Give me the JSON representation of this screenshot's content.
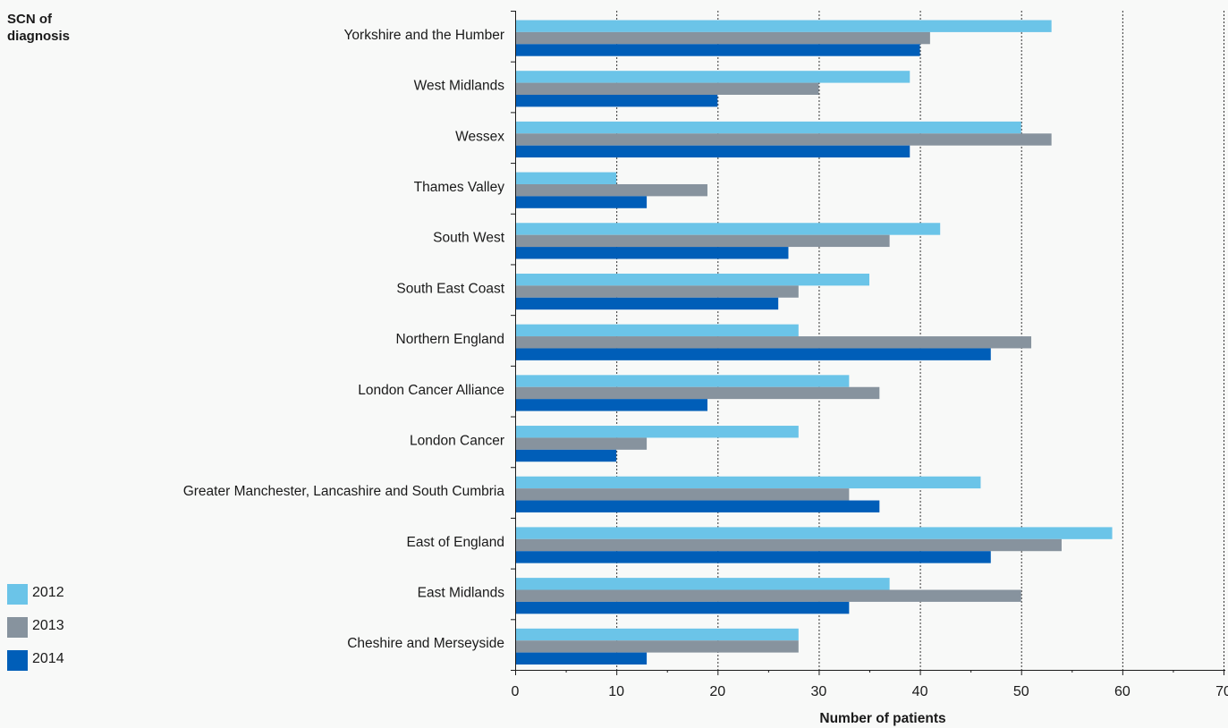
{
  "chart_data": {
    "type": "bar",
    "orientation": "horizontal",
    "ylabel": "SCN of diagnosis",
    "xlabel": "Number of patients",
    "xlim": [
      0,
      70
    ],
    "xticks": [
      "0",
      "10",
      "20",
      "30",
      "40",
      "50",
      "60",
      "70"
    ],
    "grid": "vertical dotted",
    "legend_position": "bottom-left",
    "categories": [
      "Yorkshire and the Humber",
      "West Midlands",
      "Wessex",
      "Thames Valley",
      "South West",
      "South East Coast",
      "Northern England",
      "London Cancer Alliance",
      "London Cancer",
      "Greater Manchester, Lancashire and South Cumbria",
      "East of England",
      "East Midlands",
      "Cheshire and Merseyside"
    ],
    "series": [
      {
        "name": "2012",
        "color": "#6bc4e8",
        "values": [
          53,
          39,
          50,
          10,
          42,
          35,
          28,
          33,
          28,
          46,
          59,
          37,
          28
        ]
      },
      {
        "name": "2013",
        "color": "#87939e",
        "values": [
          41,
          30,
          53,
          19,
          37,
          28,
          51,
          36,
          13,
          33,
          54,
          50,
          28
        ]
      },
      {
        "name": "2014",
        "color": "#005eb8",
        "values": [
          40,
          20,
          39,
          13,
          27,
          26,
          47,
          19,
          10,
          36,
          47,
          33,
          13
        ]
      }
    ]
  }
}
